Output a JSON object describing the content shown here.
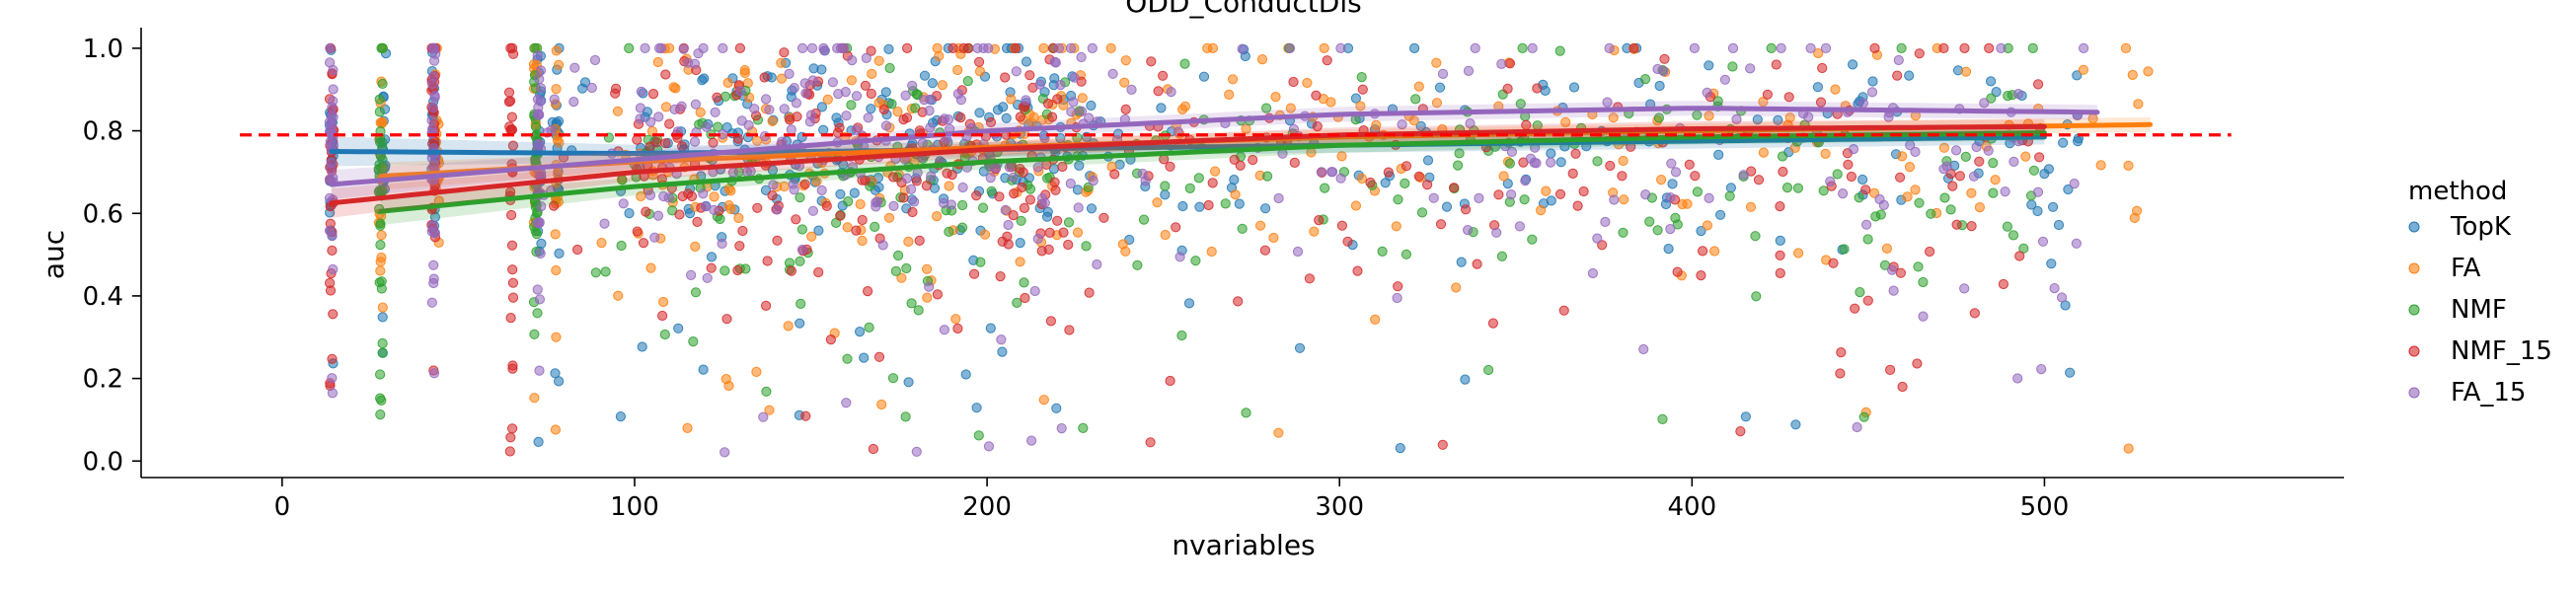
{
  "chart_data": {
    "type": "scatter",
    "title": "ODD_ConductDis",
    "xlabel": "nvariables",
    "ylabel": "auc",
    "xlim": [
      -40,
      585
    ],
    "ylim": [
      -0.04,
      1.05
    ],
    "xticks": [
      0,
      100,
      200,
      300,
      400,
      500
    ],
    "yticks": [
      0.0,
      0.2,
      0.4,
      0.6,
      0.8,
      1.0
    ],
    "grid": false,
    "reference_line": {
      "y": 0.79,
      "x_from": -12,
      "x_to": 553,
      "color": "#ff0000",
      "style": "dashed"
    },
    "legend": {
      "title": "method",
      "placement": "right"
    },
    "series": [
      {
        "name": "TopK",
        "color": "#1f77b4",
        "x_range": [
          14,
          510
        ],
        "x_clusters": [
          14,
          29,
          43,
          73,
          78
        ],
        "point_count": 420,
        "auc_mean": 0.77,
        "auc_spread": 0.12,
        "trend": {
          "x": [
            14,
            100,
            200,
            300,
            400,
            500
          ],
          "y": [
            0.75,
            0.745,
            0.755,
            0.765,
            0.775,
            0.785
          ]
        }
      },
      {
        "name": "FA",
        "color": "#ff7f0e",
        "x_range": [
          28,
          530
        ],
        "x_clusters": [
          28,
          44,
          72,
          78
        ],
        "point_count": 380,
        "auc_mean": 0.76,
        "auc_spread": 0.14,
        "trend": {
          "x": [
            28,
            100,
            200,
            300,
            400,
            530
          ],
          "y": [
            0.69,
            0.725,
            0.76,
            0.785,
            0.8,
            0.815
          ]
        }
      },
      {
        "name": "NMF",
        "color": "#2ca02c",
        "x_range": [
          28,
          500
        ],
        "x_clusters": [
          28,
          72
        ],
        "point_count": 330,
        "auc_mean": 0.72,
        "auc_spread": 0.16,
        "trend": {
          "x": [
            28,
            100,
            200,
            300,
            400,
            500
          ],
          "y": [
            0.605,
            0.665,
            0.725,
            0.765,
            0.785,
            0.795
          ]
        }
      },
      {
        "name": "NMF_15",
        "color": "#d62728",
        "x_range": [
          14,
          500
        ],
        "x_clusters": [
          14,
          43,
          65
        ],
        "point_count": 420,
        "auc_mean": 0.74,
        "auc_spread": 0.16,
        "trend": {
          "x": [
            14,
            100,
            200,
            300,
            400,
            500
          ],
          "y": [
            0.625,
            0.7,
            0.755,
            0.79,
            0.805,
            0.81
          ]
        }
      },
      {
        "name": "FA_15",
        "color": "#9467bd",
        "x_range": [
          14,
          515
        ],
        "x_clusters": [
          14,
          43,
          73
        ],
        "point_count": 420,
        "auc_mean": 0.79,
        "auc_spread": 0.15,
        "trend": {
          "x": [
            14,
            100,
            200,
            300,
            400,
            515
          ],
          "y": [
            0.67,
            0.73,
            0.8,
            0.84,
            0.855,
            0.845
          ]
        }
      }
    ]
  }
}
